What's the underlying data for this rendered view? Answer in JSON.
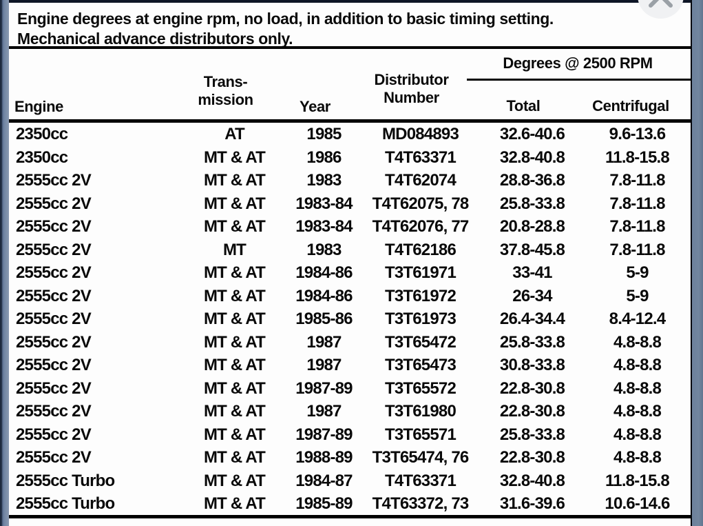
{
  "window": {
    "close_icon": "x-close"
  },
  "intro": {
    "line1": "Engine degrees at engine rpm, no load, in addition to basic timing setting.",
    "line2": "Mechanical advance distributors only."
  },
  "table": {
    "span_header": "Degrees @ 2500 RPM",
    "headers": {
      "engine": "Engine",
      "transmission": "Trans-\nmission",
      "year": "Year",
      "distributor": "Distributor\nNumber",
      "total": "Total",
      "centrifugal": "Centrifugal"
    },
    "rows": [
      [
        "2350cc",
        "AT",
        "1985",
        "MD084893",
        "32.6-40.6",
        "9.6-13.6"
      ],
      [
        "2350cc",
        "MT & AT",
        "1986",
        "T4T63371",
        "32.8-40.8",
        "11.8-15.8"
      ],
      [
        "2555cc 2V",
        "MT & AT",
        "1983",
        "T4T62074",
        "28.8-36.8",
        "7.8-11.8"
      ],
      [
        "2555cc 2V",
        "MT & AT",
        "1983-84",
        "T4T62075, 78",
        "25.8-33.8",
        "7.8-11.8"
      ],
      [
        "2555cc 2V",
        "MT & AT",
        "1983-84",
        "T4T62076, 77",
        "20.8-28.8",
        "7.8-11.8"
      ],
      [
        "2555cc 2V",
        "MT",
        "1983",
        "T4T62186",
        "37.8-45.8",
        "7.8-11.8"
      ],
      [
        "2555cc 2V",
        "MT & AT",
        "1984-86",
        "T3T61971",
        "33-41",
        "5-9"
      ],
      [
        "2555cc 2V",
        "MT & AT",
        "1984-86",
        "T3T61972",
        "26-34",
        "5-9"
      ],
      [
        "2555cc 2V",
        "MT & AT",
        "1985-86",
        "T3T61973",
        "26.4-34.4",
        "8.4-12.4"
      ],
      [
        "2555cc 2V",
        "MT & AT",
        "1987",
        "T3T65472",
        "25.8-33.8",
        "4.8-8.8"
      ],
      [
        "2555cc 2V",
        "MT & AT",
        "1987",
        "T3T65473",
        "30.8-33.8",
        "4.8-8.8"
      ],
      [
        "2555cc 2V",
        "MT & AT",
        "1987-89",
        "T3T65572",
        "22.8-30.8",
        "4.8-8.8"
      ],
      [
        "2555cc 2V",
        "MT & AT",
        "1987",
        "T3T61980",
        "22.8-30.8",
        "4.8-8.8"
      ],
      [
        "2555cc 2V",
        "MT & AT",
        "1987-89",
        "T3T65571",
        "25.8-33.8",
        "4.8-8.8"
      ],
      [
        "2555cc 2V",
        "MT & AT",
        "1988-89",
        "T3T65474, 76",
        "22.8-30.8",
        "4.8-8.8"
      ],
      [
        "2555cc Turbo",
        "MT & AT",
        "1984-87",
        "T4T63371",
        "32.8-40.8",
        "11.8-15.8"
      ],
      [
        "2555cc Turbo",
        "MT & AT",
        "1985-89",
        "T4T63372, 73",
        "31.6-39.6",
        "10.6-14.6"
      ]
    ]
  },
  "colors": {
    "frame_blue": "#6f84a2",
    "frame_dark": "#0e1626",
    "rule_black": "#000000",
    "close_circle": "#f0f1f3",
    "close_glyph": "#9aa0a6"
  }
}
